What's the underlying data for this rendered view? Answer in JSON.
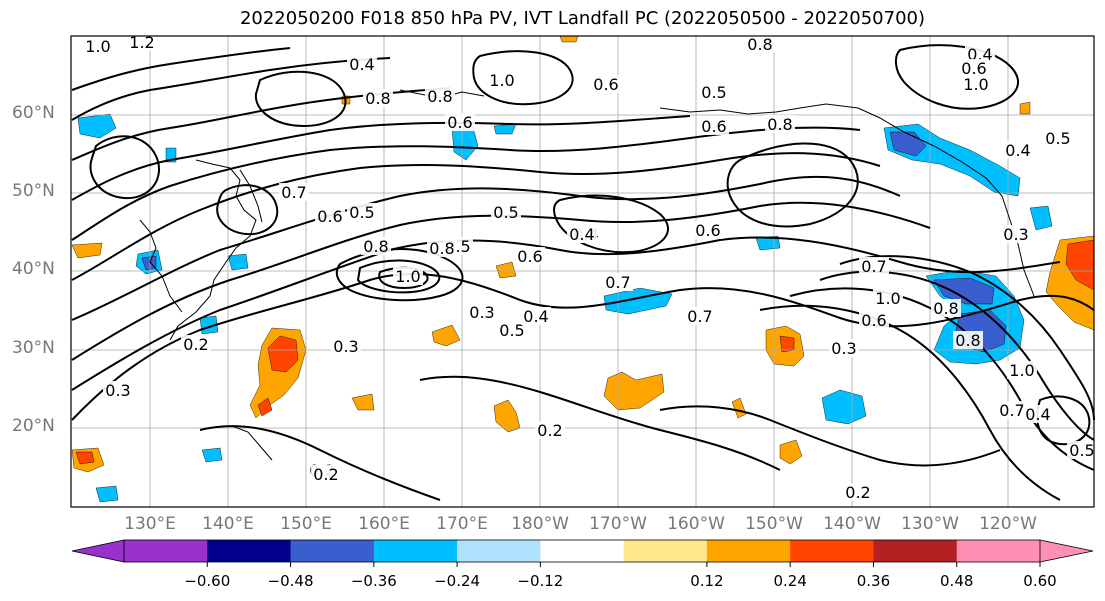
{
  "title": "2022050200 F018 850 hPa PV, IVT Landfall PC (2022050500 - 2022050700)",
  "colors": {
    "bins": [
      "#9932cc",
      "#00008b",
      "#3a5ecd",
      "#00bfff",
      "#b0e2ff",
      "#ffffff",
      "#ffe88a",
      "#ffa500",
      "#ff4500",
      "#b22222",
      "#ff8fb4"
    ],
    "contour": "#000000",
    "grid": "#a9a9a9",
    "coast": "#000000"
  },
  "axes": {
    "lat_labels": [
      "60°N",
      "50°N",
      "40°N",
      "30°N",
      "20°N"
    ],
    "lon_labels": [
      "130°E",
      "140°E",
      "150°E",
      "160°E",
      "170°E",
      "180°W",
      "170°W",
      "160°W",
      "150°W",
      "140°W",
      "130°W",
      "120°W"
    ]
  },
  "colorbar": {
    "tick_labels": [
      "−0.60",
      "−0.48",
      "−0.36",
      "−0.24",
      "−0.12",
      "0.12",
      "0.24",
      "0.36",
      "0.48",
      "0.60"
    ]
  },
  "contour_labels": [
    "1.0",
    "1.2",
    "0.4",
    "0.8",
    "1.0",
    "0.8",
    "0.6",
    "0.5",
    "0.6",
    "0.8",
    "0.4",
    "0.6",
    "1.0",
    "0.8",
    "0.6",
    "0.5",
    "0.8",
    "0.7",
    "0.6",
    "0.5",
    "0.5",
    "0.4",
    "0.8",
    "1.0",
    "0.7",
    "0.6",
    "0.6",
    "0.7",
    "0.4",
    "0.3",
    "0.5",
    "0.4",
    "0.2",
    "0.3",
    "0.3",
    "0.2",
    "0.2",
    "0.3",
    "0.8",
    "1.0",
    "0.8",
    "0.6",
    "0.7",
    "0.2",
    "0.5",
    "0.4",
    "0.4",
    "0.5",
    "1.0",
    "0.2",
    "0.7",
    "0.3"
  ]
}
